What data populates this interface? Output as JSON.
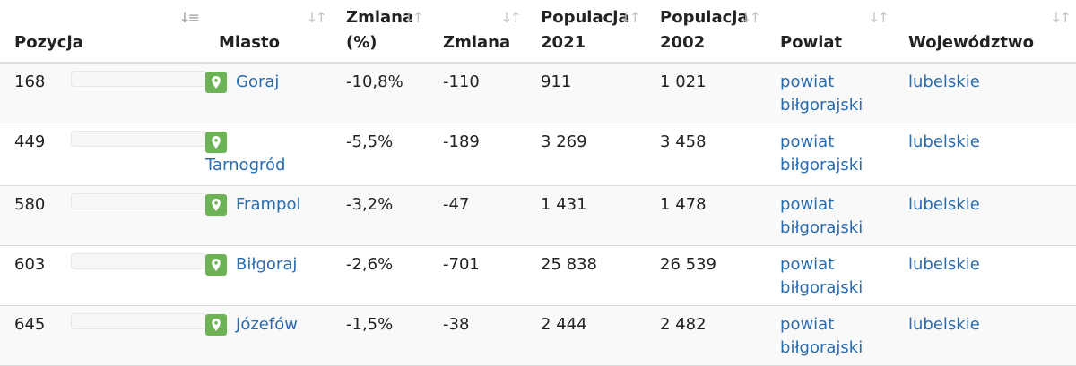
{
  "headers": {
    "pozycja": "Pozycja",
    "miasto": "Miasto",
    "zmiana_pct_1": "Zmiana",
    "zmiana_pct_2": "(%)",
    "zmiana": "Zmiana",
    "pop2021_1": "Populacja",
    "pop2021_2": "2021",
    "pop2002_1": "Populacja",
    "pop2002_2": "2002",
    "powiat": "Powiat",
    "wojewodztwo": "Województwo"
  },
  "icons": {
    "sort": "sort-icon",
    "sort_active": "sort-numeric-icon",
    "pin": "map-pin-icon"
  },
  "colors": {
    "link": "#2a6cb0",
    "pin": "#6db356"
  },
  "rows": [
    {
      "pos": "168",
      "city": "Goraj",
      "pct": "-10,8%",
      "change": "-110",
      "p2021": "911",
      "p2002": "1 021",
      "powiat": "powiat biłgorajski",
      "woj": "lubelskie"
    },
    {
      "pos": "449",
      "city": "Tarnogród",
      "pct": "-5,5%",
      "change": "-189",
      "p2021": "3 269",
      "p2002": "3 458",
      "powiat": "powiat biłgorajski",
      "woj": "lubelskie"
    },
    {
      "pos": "580",
      "city": "Frampol",
      "pct": "-3,2%",
      "change": "-47",
      "p2021": "1 431",
      "p2002": "1 478",
      "powiat": "powiat biłgorajski",
      "woj": "lubelskie"
    },
    {
      "pos": "603",
      "city": "Biłgoraj",
      "pct": "-2,6%",
      "change": "-701",
      "p2021": "25 838",
      "p2002": "26 539",
      "powiat": "powiat biłgorajski",
      "woj": "lubelskie"
    },
    {
      "pos": "645",
      "city": "Józefów",
      "pct": "-1,5%",
      "change": "-38",
      "p2021": "2 444",
      "p2002": "2 482",
      "powiat": "powiat biłgorajski",
      "woj": "lubelskie"
    }
  ]
}
